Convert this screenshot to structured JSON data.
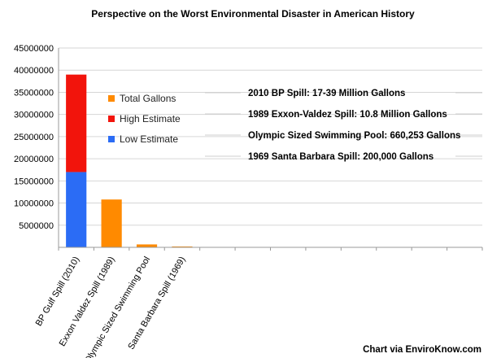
{
  "chart_data": {
    "type": "bar",
    "title": "Perspective on the Worst Environmental Disaster in American History",
    "categories": [
      "BP Gulf Spill (2010)",
      "Exxon Valdez Spill (1989)",
      "Olympic Sized Swimming Pool",
      "Santa Barbara Spill (1969)",
      "",
      "",
      "",
      "",
      "",
      "",
      "",
      ""
    ],
    "series": [
      {
        "name": "Low Estimate",
        "color": "#2b6cf5",
        "values": [
          17000000,
          0,
          0,
          0,
          0,
          0,
          0,
          0,
          0,
          0,
          0,
          0
        ]
      },
      {
        "name": "High Estimate",
        "color": "#f2140c",
        "values": [
          22000000,
          0,
          0,
          0,
          0,
          0,
          0,
          0,
          0,
          0,
          0,
          0
        ]
      },
      {
        "name": "Total Gallons",
        "color": "#ff8a00",
        "values": [
          0,
          10800000,
          660253,
          200000,
          0,
          0,
          0,
          0,
          0,
          0,
          0,
          0
        ]
      }
    ],
    "stacked": true,
    "ylim": [
      0,
      45000000
    ],
    "yticks": [
      5000000,
      10000000,
      15000000,
      20000000,
      25000000,
      30000000,
      35000000,
      40000000,
      45000000
    ],
    "ytick_labels": [
      "5000000",
      "10000000",
      "15000000",
      "20000000",
      "25000000",
      "30000000",
      "35000000",
      "40000000",
      "45000000"
    ],
    "legend": {
      "placement": "upper-left inside plot",
      "entries": [
        {
          "label": "Total Gallons",
          "color": "#ff8a00"
        },
        {
          "label": "High Estimate",
          "color": "#f2140c"
        },
        {
          "label": "Low Estimate",
          "color": "#2b6cf5"
        }
      ]
    },
    "annotations": [
      "2010 BP Spill: 17-39 Million Gallons",
      "1989 Exxon-Valdez Spill: 10.8 Million Gallons",
      "Olympic Sized Swimming Pool: 660,253 Gallons",
      "1969 Santa Barbara Spill: 200,000 Gallons"
    ],
    "grid": true
  },
  "credit": "Chart via EnviroKnow.com"
}
